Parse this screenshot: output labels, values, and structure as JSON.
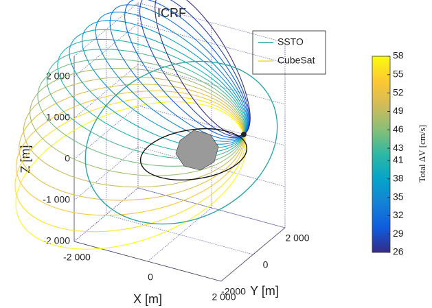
{
  "chart_data": {
    "type": "line3d",
    "title": "ICRF",
    "x_label": "X [m]",
    "y_label": "Y [m]",
    "z_label": "Z [m]",
    "xlim": [
      -2000,
      2000
    ],
    "ylim": [
      -2000,
      2000
    ],
    "zlim": [
      -2000,
      2500
    ],
    "xticks": [
      {
        "value": -2000,
        "label": "-2 000"
      },
      0,
      {
        "value": 2000,
        "label": "2 000"
      }
    ],
    "yticks": [
      {
        "value": -2000,
        "label": "-2000"
      },
      0,
      {
        "value": 2000,
        "label": "2 000"
      }
    ],
    "zticks": [
      {
        "value": -2000,
        "label": "-2 000"
      },
      {
        "value": -1000,
        "label": "-1 000"
      },
      0,
      {
        "value": 1000,
        "label": "1 000"
      },
      {
        "value": 2000,
        "label": "2 000"
      }
    ],
    "grid": true,
    "legend": "upper right",
    "series": [
      {
        "name": "SSTO",
        "color": "#2aa6a6"
      },
      {
        "name": "CubeSat",
        "color": "#e6dc3c"
      }
    ],
    "colorbar": {
      "label": "Total ΔV [cm/s]",
      "lim": [
        26,
        58
      ],
      "ticks": [
        26,
        29,
        32,
        35,
        38,
        41,
        43,
        46,
        49,
        52,
        55,
        58
      ],
      "colormap": [
        "#352a87",
        "#0f5cdd",
        "#1481d6",
        "#06a4ca",
        "#2eb7a4",
        "#87bf77",
        "#d1bb59",
        "#fec832",
        "#f9fb0e"
      ]
    }
  }
}
